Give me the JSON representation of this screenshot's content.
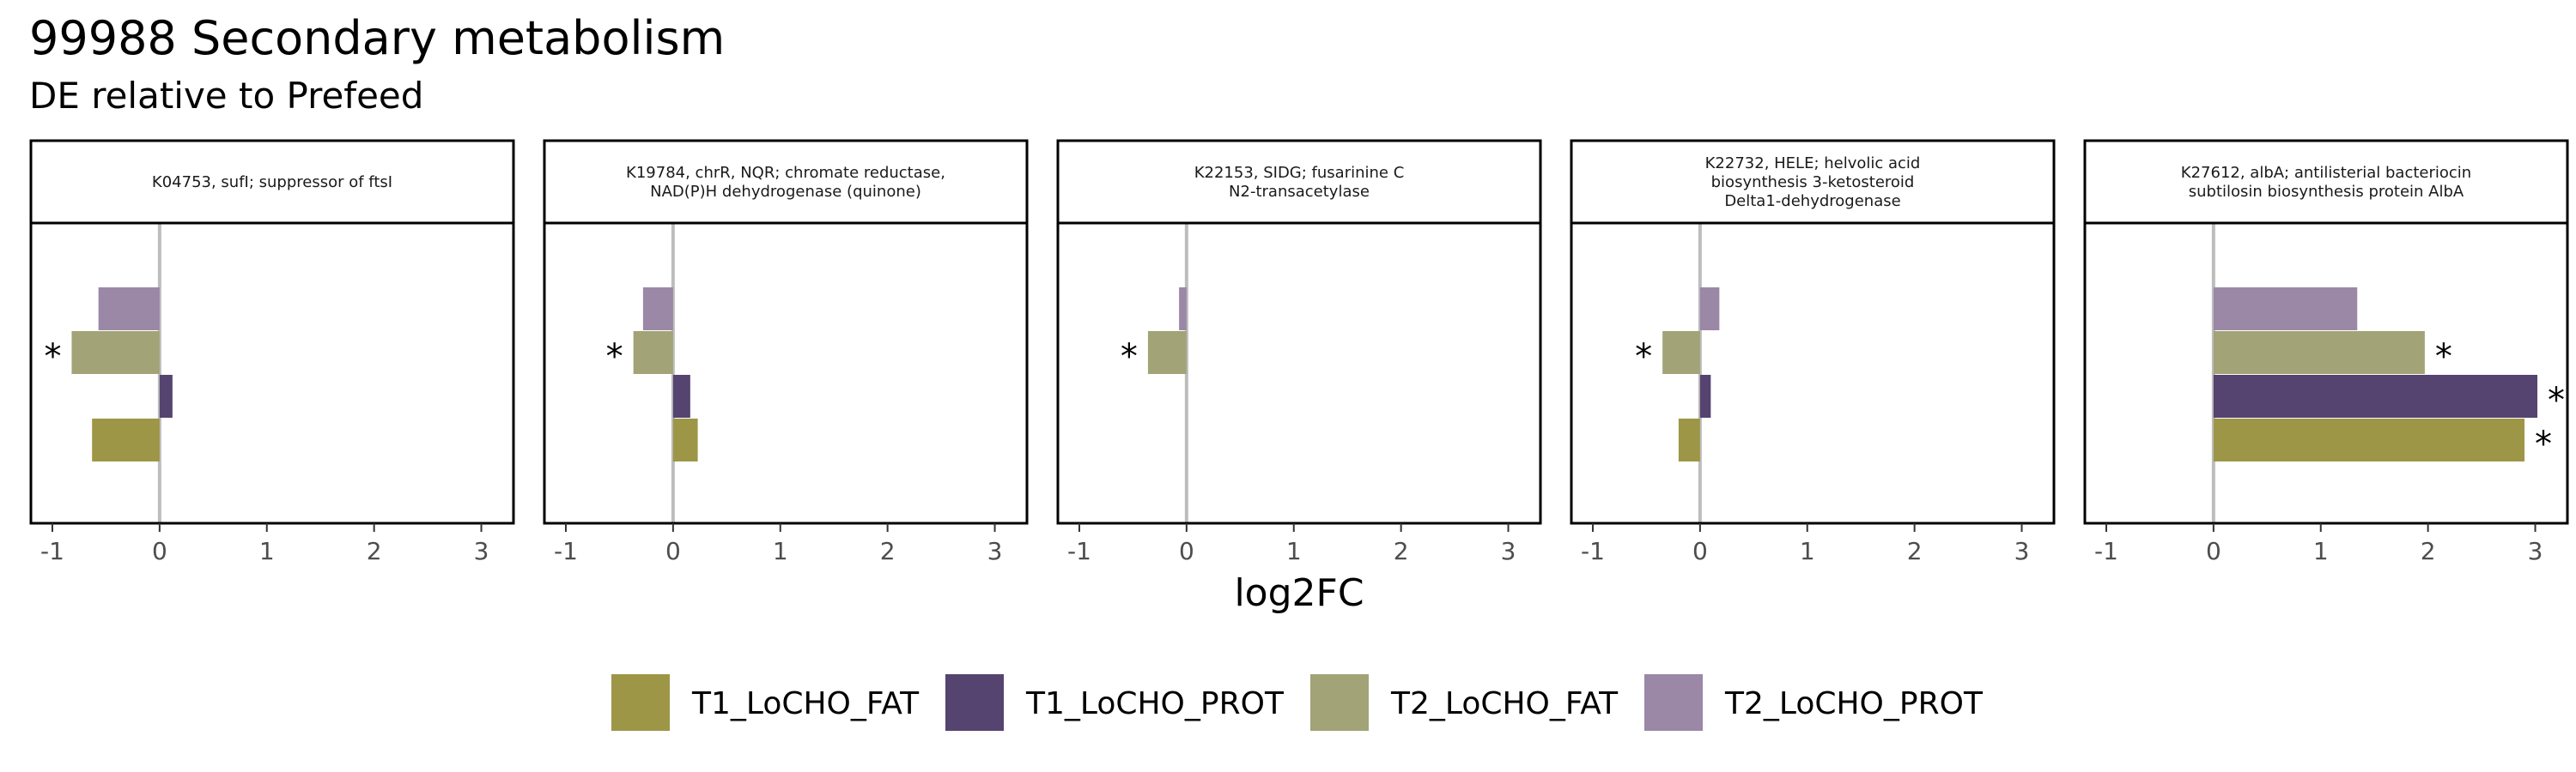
{
  "chart_data": {
    "type": "bar",
    "orientation": "horizontal",
    "title": "99988 Secondary metabolism",
    "subtitle": "DE relative to Prefeed",
    "xlabel": "log2FC",
    "xlim": [
      -1.2,
      3.3
    ],
    "xticks": [
      -1,
      0,
      1,
      2,
      3
    ],
    "xtick_labels": [
      "-1",
      "0",
      "1",
      "2",
      "3"
    ],
    "grid": false,
    "legend_position": "bottom",
    "series": [
      {
        "name": "T1_LoCHO_FAT",
        "color": "#9D9647"
      },
      {
        "name": "T1_LoCHO_PROT",
        "color": "#554370"
      },
      {
        "name": "T2_LoCHO_FAT",
        "color": "#A2A377"
      },
      {
        "name": "T2_LoCHO_PROT",
        "color": "#9B87A6"
      }
    ],
    "panels": [
      {
        "strip": [
          "K04753, sufI; suppressor of ftsI"
        ],
        "values": {
          "T1_LoCHO_FAT": -0.63,
          "T1_LoCHO_PROT": 0.12,
          "T2_LoCHO_FAT": -0.82,
          "T2_LoCHO_PROT": -0.57
        },
        "significant": [
          "T2_LoCHO_FAT"
        ]
      },
      {
        "strip": [
          "K19784, chrR, NQR; chromate reductase,",
          "NAD(P)H dehydrogenase (quinone)"
        ],
        "values": {
          "T1_LoCHO_FAT": 0.23,
          "T1_LoCHO_PROT": 0.16,
          "T2_LoCHO_FAT": -0.37,
          "T2_LoCHO_PROT": -0.28
        },
        "significant": [
          "T2_LoCHO_FAT"
        ]
      },
      {
        "strip": [
          "K22153, SIDG; fusarinine C",
          "N2-transacetylase"
        ],
        "values": {
          "T1_LoCHO_FAT": 0.0,
          "T1_LoCHO_PROT": 0.0,
          "T2_LoCHO_FAT": -0.36,
          "T2_LoCHO_PROT": -0.07
        },
        "significant": [
          "T2_LoCHO_FAT"
        ]
      },
      {
        "strip": [
          "K22732, HELE; helvolic acid",
          "biosynthesis 3-ketosteroid",
          "Delta1-dehydrogenase"
        ],
        "values": {
          "T1_LoCHO_FAT": -0.2,
          "T1_LoCHO_PROT": 0.1,
          "T2_LoCHO_FAT": -0.35,
          "T2_LoCHO_PROT": 0.18
        },
        "significant": [
          "T2_LoCHO_FAT"
        ]
      },
      {
        "strip": [
          "K27612, albA; antilisterial bacteriocin",
          "subtilosin biosynthesis protein AlbA"
        ],
        "values": {
          "T1_LoCHO_FAT": 2.9,
          "T1_LoCHO_PROT": 3.02,
          "T2_LoCHO_FAT": 1.97,
          "T2_LoCHO_PROT": 1.34
        },
        "significant": [
          "T1_LoCHO_FAT",
          "T1_LoCHO_PROT",
          "T2_LoCHO_FAT"
        ]
      }
    ],
    "significance_symbol": "*"
  }
}
